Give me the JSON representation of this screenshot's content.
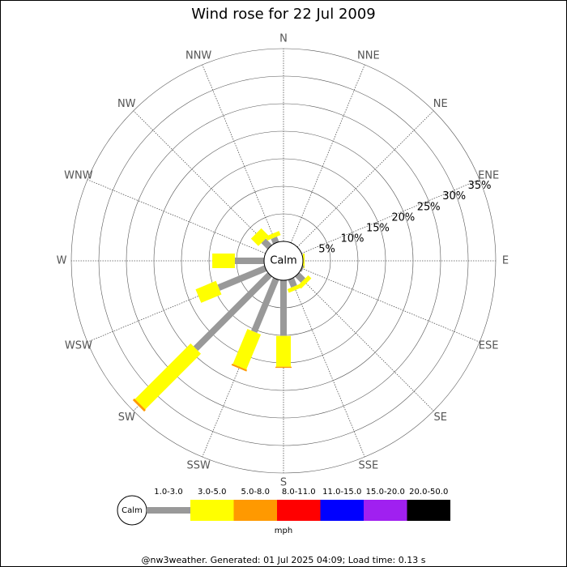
{
  "chart_data": {
    "type": "windrose",
    "title": "Wind rose for 22 Jul 2009",
    "calm_label": "Calm",
    "legend_unit": "mph",
    "footer": "@nw3weather. Generated: 01 Jul 2025 04:09; Load time: 0.13 s",
    "categories": [
      "N",
      "NNE",
      "NE",
      "ENE",
      "E",
      "ESE",
      "SE",
      "SSE",
      "S",
      "SSW",
      "SW",
      "WSW",
      "W",
      "WNW",
      "NW",
      "NNW"
    ],
    "ylim": [
      0,
      35
    ],
    "yticks": [
      {
        "value": 5,
        "label": "5%"
      },
      {
        "value": 10,
        "label": "10%"
      },
      {
        "value": 15,
        "label": "15%"
      },
      {
        "value": 20,
        "label": "20%"
      },
      {
        "value": 25,
        "label": "25%"
      },
      {
        "value": 30,
        "label": "30%"
      },
      {
        "value": 35,
        "label": "35%"
      }
    ],
    "series": [
      {
        "name": "1.0-3.0",
        "color": "#999999",
        "values": [
          0,
          0,
          0,
          0,
          0,
          0.3,
          1.5,
          1.5,
          10.1,
          10.4,
          19,
          9.2,
          5.3,
          0,
          1.6,
          1.0
        ]
      },
      {
        "name": "3.0-5.0",
        "color": "#ffff00",
        "values": [
          0,
          0,
          0,
          0,
          0.3,
          0,
          0.8,
          0.7,
          5.6,
          6.9,
          14.3,
          4.0,
          4.1,
          0,
          1.9,
          0.8
        ]
      },
      {
        "name": "5.0-8.0",
        "color": "#ff9900",
        "values": [
          0,
          0,
          0,
          0,
          0,
          0,
          0,
          0,
          0.2,
          0.3,
          0.4,
          0,
          0,
          0,
          0,
          0
        ]
      },
      {
        "name": "8.0-11.0",
        "color": "#ff0000",
        "values": [
          0,
          0,
          0,
          0,
          0,
          0,
          0,
          0,
          0,
          0,
          0,
          0,
          0,
          0,
          0,
          0
        ]
      },
      {
        "name": "11.0-15.0",
        "color": "#0000ff",
        "values": [
          0,
          0,
          0,
          0,
          0,
          0,
          0,
          0,
          0,
          0,
          0,
          0,
          0,
          0,
          0,
          0
        ]
      },
      {
        "name": "15.0-20.0",
        "color": "#a020f0",
        "values": [
          0,
          0,
          0,
          0,
          0,
          0,
          0,
          0,
          0,
          0,
          0,
          0,
          0,
          0,
          0,
          0
        ]
      },
      {
        "name": "20.0-50.0",
        "color": "#000000",
        "values": [
          0,
          0,
          0,
          0,
          0,
          0,
          0,
          0,
          0,
          0,
          0,
          0,
          0,
          0,
          0,
          0
        ]
      }
    ]
  }
}
